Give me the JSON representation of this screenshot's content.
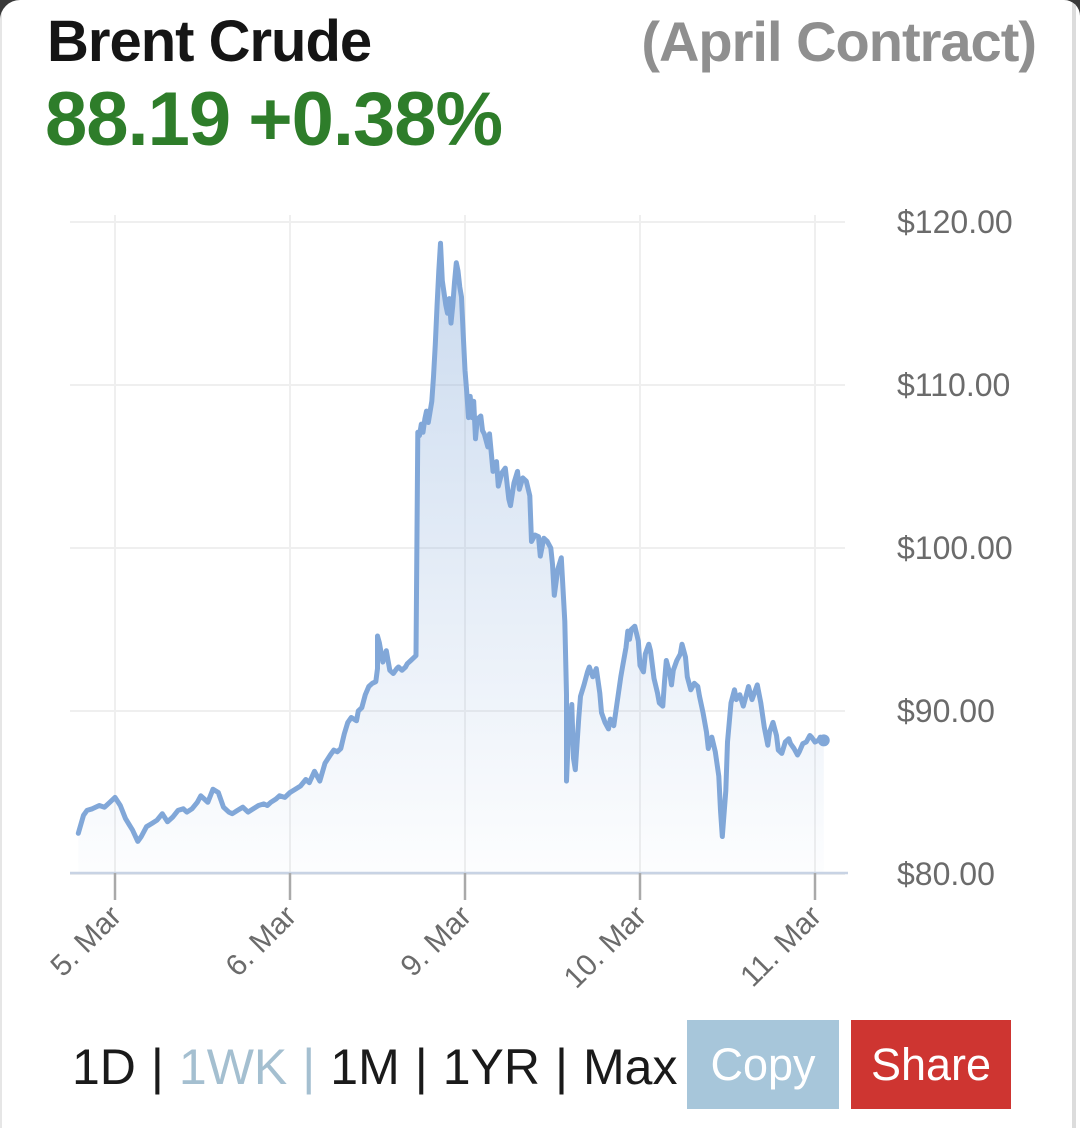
{
  "header": {
    "instrument": "Brent Crude",
    "contract": "(April Contract)",
    "price": "88.19",
    "change": "+0.38%"
  },
  "range_selector": {
    "separator": "|",
    "options": [
      {
        "label": "1D",
        "selected": false
      },
      {
        "label": "1WK",
        "selected": true
      },
      {
        "label": "1M",
        "selected": false
      },
      {
        "label": "1YR",
        "selected": false
      },
      {
        "label": "Max",
        "selected": false
      }
    ]
  },
  "actions": {
    "copy_label": "Copy",
    "share_label": "Share"
  },
  "ui_colors": {
    "accent_green": "#2e7d2a",
    "copy_bg": "#a7c6da",
    "share_bg": "#ce3531",
    "selected_range": "#a4bfd0"
  },
  "chart_data": {
    "type": "area",
    "title": "Brent Crude (April Contract) price, 1 week",
    "series_name": "Brent Crude April contract (USD per barrel)",
    "x_unit": "trading days from 5 Mar (weekend 7-8 Mar omitted)",
    "ylim": [
      80,
      120
    ],
    "grid": true,
    "legend": false,
    "last_price": 88.19,
    "line_color": "#81a7d8",
    "area_fill_top": "rgba(129,167,216,0.42)",
    "area_fill_bottom": "rgba(129,167,216,0.02)",
    "grid_color": "#efefef",
    "axis_color": "#c8d3e4",
    "tick_color": "#a9a9a9",
    "label_color": "#6b6b6b",
    "x_ticks": [
      {
        "pos": 0,
        "label": "5. Mar"
      },
      {
        "pos": 1,
        "label": "6. Mar"
      },
      {
        "pos": 2,
        "label": "9. Mar"
      },
      {
        "pos": 3,
        "label": "10. Mar"
      },
      {
        "pos": 4,
        "label": "11. Mar"
      }
    ],
    "y_ticks": [
      {
        "value": 120,
        "label": "$120.00"
      },
      {
        "value": 110,
        "label": "$110.00"
      },
      {
        "value": 100,
        "label": "$100.00"
      },
      {
        "value": 90,
        "label": "$90.00"
      },
      {
        "value": 80,
        "label": "$80.00"
      }
    ],
    "series": [
      {
        "name": "price",
        "points": [
          [
            -0.21,
            82.5
          ],
          [
            -0.18,
            83.6
          ],
          [
            -0.16,
            83.9
          ],
          [
            -0.13,
            84.0
          ],
          [
            -0.09,
            84.2
          ],
          [
            -0.06,
            84.1
          ],
          [
            -0.03,
            84.4
          ],
          [
            0,
            84.7
          ],
          [
            0.03,
            84.2
          ],
          [
            0.06,
            83.4
          ],
          [
            0.1,
            82.7
          ],
          [
            0.13,
            82.0
          ],
          [
            0.15,
            82.3
          ],
          [
            0.18,
            82.9
          ],
          [
            0.21,
            83.1
          ],
          [
            0.24,
            83.3
          ],
          [
            0.27,
            83.7
          ],
          [
            0.3,
            83.2
          ],
          [
            0.33,
            83.5
          ],
          [
            0.36,
            83.9
          ],
          [
            0.39,
            84.0
          ],
          [
            0.41,
            83.8
          ],
          [
            0.44,
            84.0
          ],
          [
            0.47,
            84.4
          ],
          [
            0.49,
            84.8
          ],
          [
            0.51,
            84.6
          ],
          [
            0.53,
            84.4
          ],
          [
            0.56,
            85.2
          ],
          [
            0.59,
            85.0
          ],
          [
            0.62,
            84.1
          ],
          [
            0.65,
            83.8
          ],
          [
            0.67,
            83.7
          ],
          [
            0.7,
            83.9
          ],
          [
            0.73,
            84.1
          ],
          [
            0.76,
            83.8
          ],
          [
            0.79,
            84.0
          ],
          [
            0.82,
            84.2
          ],
          [
            0.85,
            84.3
          ],
          [
            0.87,
            84.2
          ],
          [
            0.89,
            84.4
          ],
          [
            0.92,
            84.6
          ],
          [
            0.94,
            84.8
          ],
          [
            0.97,
            84.7
          ],
          [
            1.0,
            85.0
          ],
          [
            1.03,
            85.2
          ],
          [
            1.06,
            85.4
          ],
          [
            1.09,
            85.8
          ],
          [
            1.11,
            85.6
          ],
          [
            1.14,
            86.3
          ],
          [
            1.17,
            85.7
          ],
          [
            1.2,
            86.8
          ],
          [
            1.23,
            87.3
          ],
          [
            1.25,
            87.6
          ],
          [
            1.27,
            87.5
          ],
          [
            1.29,
            87.7
          ],
          [
            1.31,
            88.6
          ],
          [
            1.33,
            89.3
          ],
          [
            1.35,
            89.6
          ],
          [
            1.38,
            89.4
          ],
          [
            1.39,
            90.0
          ],
          [
            1.41,
            90.2
          ],
          [
            1.43,
            91.0
          ],
          [
            1.45,
            91.5
          ],
          [
            1.47,
            91.7
          ],
          [
            1.49,
            91.8
          ],
          [
            1.5,
            92.6
          ],
          [
            1.5,
            94.6
          ],
          [
            1.51,
            94.2
          ],
          [
            1.53,
            93.0
          ],
          [
            1.55,
            93.7
          ],
          [
            1.57,
            92.5
          ],
          [
            1.59,
            92.3
          ],
          [
            1.61,
            92.6
          ],
          [
            1.62,
            92.7
          ],
          [
            1.64,
            92.5
          ],
          [
            1.66,
            92.7
          ],
          [
            1.67,
            92.9
          ],
          [
            1.69,
            93.1
          ],
          [
            1.71,
            93.3
          ],
          [
            1.72,
            93.4
          ],
          [
            1.73,
            107.1
          ],
          [
            1.74,
            106.9
          ],
          [
            1.75,
            107.6
          ],
          [
            1.76,
            107.1
          ],
          [
            1.77,
            107.9
          ],
          [
            1.78,
            108.4
          ],
          [
            1.79,
            107.7
          ],
          [
            1.81,
            109.0
          ],
          [
            1.82,
            110.5
          ],
          [
            1.83,
            112.5
          ],
          [
            1.84,
            114.8
          ],
          [
            1.85,
            117.0
          ],
          [
            1.86,
            118.7
          ],
          [
            1.87,
            116.4
          ],
          [
            1.89,
            114.9
          ],
          [
            1.9,
            114.4
          ],
          [
            1.91,
            115.3
          ],
          [
            1.92,
            113.8
          ],
          [
            1.93,
            114.9
          ],
          [
            1.94,
            116.3
          ],
          [
            1.95,
            117.5
          ],
          [
            1.96,
            117.0
          ],
          [
            1.97,
            116.0
          ],
          [
            1.98,
            115.4
          ],
          [
            1.99,
            113.0
          ],
          [
            2.0,
            110.9
          ],
          [
            2.01,
            109.6
          ],
          [
            2.02,
            108.0
          ],
          [
            2.03,
            109.3
          ],
          [
            2.04,
            108.0
          ],
          [
            2.05,
            109.0
          ],
          [
            2.06,
            106.7
          ],
          [
            2.07,
            107.9
          ],
          [
            2.09,
            108.1
          ],
          [
            2.1,
            107.2
          ],
          [
            2.11,
            107.0
          ],
          [
            2.13,
            106.2
          ],
          [
            2.14,
            107.0
          ],
          [
            2.16,
            104.7
          ],
          [
            2.18,
            105.3
          ],
          [
            2.19,
            103.8
          ],
          [
            2.21,
            104.6
          ],
          [
            2.23,
            104.9
          ],
          [
            2.25,
            103.0
          ],
          [
            2.26,
            102.6
          ],
          [
            2.28,
            104.0
          ],
          [
            2.3,
            104.7
          ],
          [
            2.31,
            103.6
          ],
          [
            2.33,
            104.3
          ],
          [
            2.35,
            104.1
          ],
          [
            2.37,
            103.2
          ],
          [
            2.38,
            100.4
          ],
          [
            2.4,
            100.8
          ],
          [
            2.42,
            100.7
          ],
          [
            2.43,
            99.5
          ],
          [
            2.45,
            100.6
          ],
          [
            2.47,
            100.4
          ],
          [
            2.49,
            100.0
          ],
          [
            2.5,
            99.0
          ],
          [
            2.51,
            97.1
          ],
          [
            2.53,
            98.7
          ],
          [
            2.55,
            99.4
          ],
          [
            2.56,
            97.5
          ],
          [
            2.57,
            95.5
          ],
          [
            2.58,
            91.0
          ],
          [
            2.58,
            85.7
          ],
          [
            2.59,
            88.3
          ],
          [
            2.61,
            90.4
          ],
          [
            2.62,
            87.1
          ],
          [
            2.63,
            86.4
          ],
          [
            2.65,
            89.6
          ],
          [
            2.66,
            90.9
          ],
          [
            2.68,
            91.6
          ],
          [
            2.7,
            92.4
          ],
          [
            2.71,
            92.7
          ],
          [
            2.73,
            92.1
          ],
          [
            2.75,
            92.6
          ],
          [
            2.77,
            91.1
          ],
          [
            2.78,
            89.9
          ],
          [
            2.8,
            89.3
          ],
          [
            2.82,
            88.9
          ],
          [
            2.83,
            89.5
          ],
          [
            2.85,
            89.1
          ],
          [
            2.87,
            90.6
          ],
          [
            2.89,
            92.1
          ],
          [
            2.9,
            92.7
          ],
          [
            2.92,
            93.9
          ],
          [
            2.93,
            94.9
          ],
          [
            2.94,
            94.4
          ],
          [
            2.95,
            95.0
          ],
          [
            2.97,
            95.2
          ],
          [
            2.99,
            94.3
          ],
          [
            3.0,
            92.8
          ],
          [
            3.02,
            92.4
          ],
          [
            3.03,
            93.5
          ],
          [
            3.05,
            94.1
          ],
          [
            3.06,
            93.7
          ],
          [
            3.08,
            92.0
          ],
          [
            3.1,
            91.1
          ],
          [
            3.11,
            90.5
          ],
          [
            3.13,
            90.3
          ],
          [
            3.14,
            91.8
          ],
          [
            3.15,
            93.1
          ],
          [
            3.17,
            92.3
          ],
          [
            3.18,
            91.6
          ],
          [
            3.19,
            92.5
          ],
          [
            3.21,
            93.1
          ],
          [
            3.23,
            93.5
          ],
          [
            3.24,
            94.1
          ],
          [
            3.26,
            93.3
          ],
          [
            3.27,
            92.1
          ],
          [
            3.29,
            91.3
          ],
          [
            3.31,
            91.7
          ],
          [
            3.33,
            91.5
          ],
          [
            3.34,
            90.9
          ],
          [
            3.36,
            89.9
          ],
          [
            3.38,
            88.7
          ],
          [
            3.39,
            87.7
          ],
          [
            3.41,
            88.4
          ],
          [
            3.43,
            87.5
          ],
          [
            3.45,
            86.0
          ],
          [
            3.46,
            83.9
          ],
          [
            3.47,
            82.3
          ],
          [
            3.49,
            85.1
          ],
          [
            3.5,
            88.1
          ],
          [
            3.52,
            90.5
          ],
          [
            3.54,
            91.3
          ],
          [
            3.55,
            90.7
          ],
          [
            3.57,
            91.0
          ],
          [
            3.59,
            90.3
          ],
          [
            3.61,
            91.1
          ],
          [
            3.62,
            91.5
          ],
          [
            3.64,
            90.7
          ],
          [
            3.66,
            91.3
          ],
          [
            3.67,
            91.6
          ],
          [
            3.69,
            90.5
          ],
          [
            3.71,
            89.0
          ],
          [
            3.73,
            87.9
          ],
          [
            3.74,
            88.7
          ],
          [
            3.76,
            89.3
          ],
          [
            3.78,
            88.5
          ],
          [
            3.79,
            87.6
          ],
          [
            3.81,
            87.4
          ],
          [
            3.83,
            88.1
          ],
          [
            3.85,
            88.3
          ],
          [
            3.86,
            88.0
          ],
          [
            3.88,
            87.7
          ],
          [
            3.9,
            87.3
          ],
          [
            3.91,
            87.5
          ],
          [
            3.93,
            88.0
          ],
          [
            3.95,
            88.1
          ],
          [
            3.97,
            88.5
          ],
          [
            3.98,
            88.4
          ],
          [
            4.0,
            88.1
          ],
          [
            4.02,
            88.2
          ],
          [
            4.03,
            88.4
          ],
          [
            4.05,
            88.2
          ]
        ]
      }
    ]
  }
}
